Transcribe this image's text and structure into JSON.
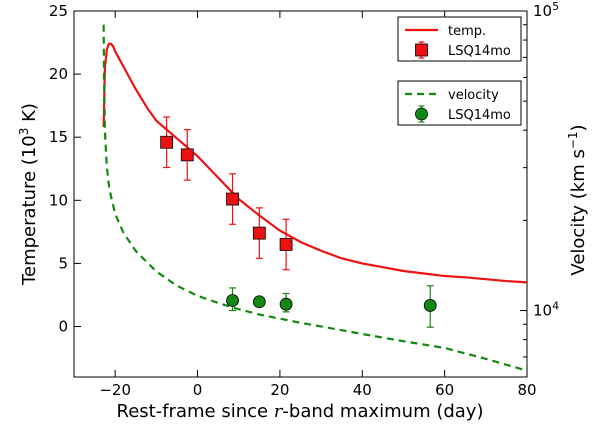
{
  "chart_data": {
    "type": "line",
    "title": "",
    "xlabel": "Rest-frame since r-band maximum (day)",
    "xlabel_parts": {
      "pre": "Rest-frame since ",
      "italic": "r",
      "post": "-band maximum (day)"
    },
    "ylabel_left": "Temperature (10^3 K)",
    "ylabel_left_parts": {
      "pre": "Temperature (10",
      "sup": "3",
      "post": " K)"
    },
    "ylabel_right": "Velocity (km s^-1)",
    "ylabel_right_parts": {
      "pre": "Velocity (km s",
      "sup": "−1",
      "post": ")"
    },
    "xlim": [
      -30,
      80
    ],
    "ylim_left": [
      -4,
      25
    ],
    "ylim_right": [
      6000,
      100000
    ],
    "right_scale": "log",
    "grid": false,
    "x_ticks": [
      {
        "value": -20,
        "label": "−20"
      },
      {
        "value": 0,
        "label": "0"
      },
      {
        "value": 20,
        "label": "20"
      },
      {
        "value": 40,
        "label": "40"
      },
      {
        "value": 60,
        "label": "60"
      },
      {
        "value": 80,
        "label": "80"
      }
    ],
    "y_left_ticks": [
      {
        "value": 0,
        "label": "0"
      },
      {
        "value": 5,
        "label": "5"
      },
      {
        "value": 10,
        "label": "10"
      },
      {
        "value": 15,
        "label": "15"
      },
      {
        "value": 20,
        "label": "20"
      },
      {
        "value": 25,
        "label": "25"
      }
    ],
    "y_right_ticks": [
      {
        "value": 10000,
        "base": "10",
        "exp": "4"
      },
      {
        "value": 100000,
        "base": "10",
        "exp": "5"
      }
    ],
    "series": [
      {
        "name": "temp.",
        "kind": "model-line",
        "axis": "left",
        "color": "#ee1111",
        "style": "solid",
        "x": [
          -22.8,
          -22.5,
          -22,
          -21.5,
          -21,
          -20.5,
          -20,
          -18,
          -15,
          -12,
          -10,
          -5,
          0,
          5,
          10,
          15,
          20,
          25,
          30,
          35,
          40,
          45,
          50,
          55,
          60,
          65,
          70,
          75,
          80
        ],
        "y": [
          15.8,
          20.5,
          22.0,
          22.4,
          22.4,
          22.2,
          21.8,
          20.6,
          18.8,
          17.2,
          16.3,
          14.9,
          13.5,
          11.8,
          10.1,
          8.8,
          7.6,
          6.7,
          6.0,
          5.4,
          5.0,
          4.7,
          4.4,
          4.2,
          4.0,
          3.9,
          3.75,
          3.6,
          3.5
        ]
      },
      {
        "name": "LSQ14mo",
        "kind": "markers",
        "marker": "square",
        "axis": "left",
        "color": "#ee1111",
        "x": [
          -7.5,
          -2.5,
          8.5,
          15,
          21.5
        ],
        "y": [
          14.6,
          13.6,
          10.1,
          7.4,
          6.5
        ],
        "err": [
          2.0,
          2.0,
          2.0,
          2.0,
          2.0
        ]
      },
      {
        "name": "velocity",
        "kind": "model-line",
        "axis": "right",
        "color": "#118811",
        "style": "dashed",
        "x": [
          -22.8,
          -22.7,
          -22.5,
          -22.2,
          -22,
          -21.5,
          -21,
          -20,
          -18,
          -15,
          -10,
          -5,
          0,
          5,
          10,
          15,
          20,
          25,
          30,
          40,
          50,
          60,
          70,
          80
        ],
        "y": [
          90000,
          60000,
          40000,
          33000,
          30000,
          26000,
          24000,
          21000,
          18200,
          15800,
          13500,
          12100,
          11200,
          10600,
          10100,
          9700,
          9400,
          9100,
          8850,
          8350,
          7900,
          7500,
          6900,
          6300
        ]
      },
      {
        "name": "LSQ14mo",
        "kind": "markers",
        "marker": "circle",
        "axis": "right",
        "color": "#118811",
        "x": [
          8.5,
          15,
          21.5,
          56.5
        ],
        "y": [
          10800,
          10700,
          10500,
          10400
        ],
        "err_low": [
          10000,
          10400,
          9900,
          8800
        ],
        "err_high": [
          11900,
          11000,
          11400,
          12100
        ]
      }
    ],
    "legend": {
      "placement": "top-right",
      "boxes": [
        {
          "items": [
            {
              "label": "temp.",
              "series": 0
            },
            {
              "label": "LSQ14mo",
              "series": 1
            }
          ]
        },
        {
          "items": [
            {
              "label": "velocity",
              "series": 2
            },
            {
              "label": "LSQ14mo",
              "series": 3
            }
          ]
        }
      ]
    }
  }
}
